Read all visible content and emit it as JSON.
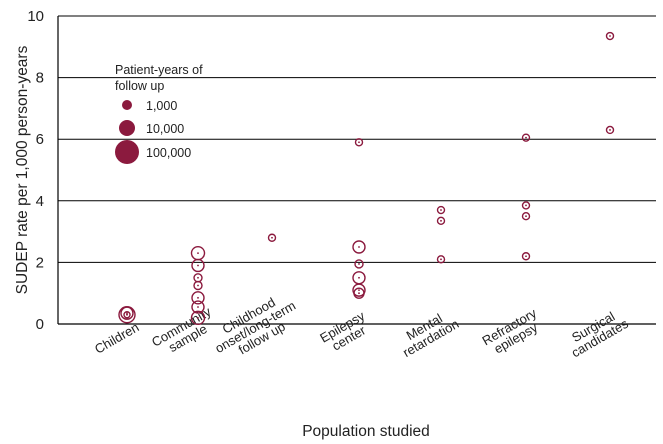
{
  "chart_data": {
    "type": "scatter",
    "xlabel": "Population studied",
    "ylabel": "SUDEP rate per 1,000 person-years",
    "ylim": [
      0,
      10
    ],
    "yticks": [
      0,
      2,
      4,
      6,
      8,
      10
    ],
    "grid": "horizontal",
    "categories": [
      [
        "Children"
      ],
      [
        "Community",
        "sample"
      ],
      [
        "Childhood",
        "onset/long-term",
        "follow up"
      ],
      [
        "Epilepsy",
        "center"
      ],
      [
        "Mental",
        "retardation"
      ],
      [
        "Refractory",
        "epilepsy"
      ],
      [
        "Surgical",
        "candidates"
      ]
    ],
    "legend": {
      "title": [
        "Patient-years of",
        "follow up"
      ],
      "placement": "top-left",
      "entries": [
        {
          "label": "1,000",
          "size_level": 1
        },
        {
          "label": "10,000",
          "size_level": 2
        },
        {
          "label": "100,000",
          "size_level": 3
        }
      ]
    },
    "marker_color": "#8b1a3e",
    "points": [
      {
        "category": 0,
        "y": 0.3,
        "size": 8,
        "filled": false
      },
      {
        "category": 0,
        "y": 0.35,
        "size": 6,
        "filled": false
      },
      {
        "category": 0,
        "y": 0.3,
        "size": 3,
        "filled": false
      },
      {
        "category": 1,
        "y": 2.3,
        "size": 6.5,
        "filled": false
      },
      {
        "category": 1,
        "y": 1.9,
        "size": 6,
        "filled": false
      },
      {
        "category": 1,
        "y": 1.5,
        "size": 4,
        "filled": false
      },
      {
        "category": 1,
        "y": 1.25,
        "size": 4,
        "filled": false
      },
      {
        "category": 1,
        "y": 0.85,
        "size": 6,
        "filled": false
      },
      {
        "category": 1,
        "y": 0.55,
        "size": 6,
        "filled": false
      },
      {
        "category": 1,
        "y": 0.2,
        "size": 6.5,
        "filled": false
      },
      {
        "category": 2,
        "y": 2.8,
        "size": 3.5,
        "filled": false
      },
      {
        "category": 3,
        "y": 5.9,
        "size": 3.5,
        "filled": false
      },
      {
        "category": 3,
        "y": 2.5,
        "size": 6,
        "filled": false
      },
      {
        "category": 3,
        "y": 1.95,
        "size": 4,
        "filled": false
      },
      {
        "category": 3,
        "y": 1.5,
        "size": 6,
        "filled": false
      },
      {
        "category": 3,
        "y": 1.1,
        "size": 6,
        "filled": false
      },
      {
        "category": 3,
        "y": 1.0,
        "size": 5,
        "filled": false
      },
      {
        "category": 4,
        "y": 3.7,
        "size": 3.5,
        "filled": false
      },
      {
        "category": 4,
        "y": 3.35,
        "size": 3.5,
        "filled": false
      },
      {
        "category": 4,
        "y": 2.1,
        "size": 3.5,
        "filled": false
      },
      {
        "category": 5,
        "y": 6.05,
        "size": 3.5,
        "filled": false
      },
      {
        "category": 5,
        "y": 3.85,
        "size": 3.5,
        "filled": false
      },
      {
        "category": 5,
        "y": 3.5,
        "size": 3.5,
        "filled": false
      },
      {
        "category": 5,
        "y": 2.2,
        "size": 3.5,
        "filled": false
      },
      {
        "category": 6,
        "y": 9.35,
        "size": 3.5,
        "filled": false
      },
      {
        "category": 6,
        "y": 6.3,
        "size": 3.5,
        "filled": false
      }
    ]
  }
}
